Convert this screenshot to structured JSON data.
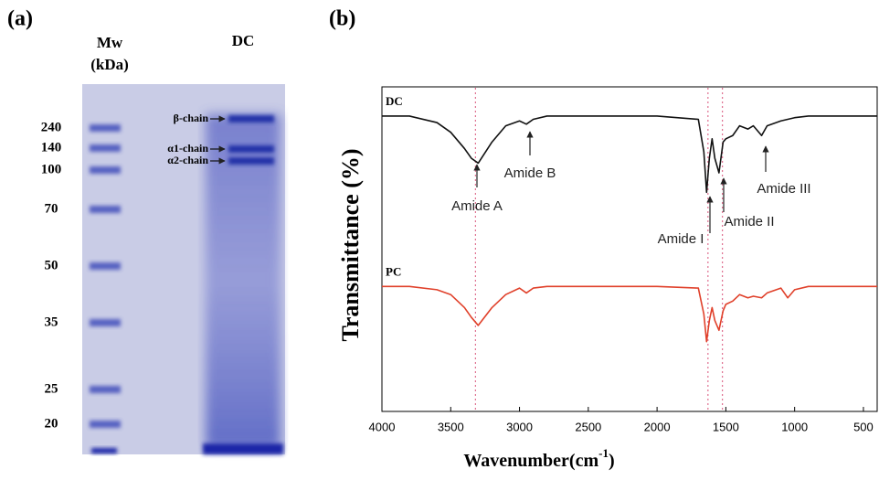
{
  "gel": {
    "panel_label": "(a)",
    "mw_label_line1": "Mw",
    "mw_label_line2": "(kDa)",
    "lane_label": "DC",
    "markers": [
      240,
      140,
      100,
      70,
      50,
      35,
      25,
      20
    ],
    "bands": [
      "β-chain",
      "α1-chain",
      "α2-chain"
    ]
  },
  "chart_data": {
    "type": "line",
    "panel_label": "(b)",
    "ylabel": "Transmittance (%)",
    "xlabel": "Wavenumber(cm",
    "xlabel_sup": "-1",
    "xlabel_end": ")",
    "xlim": [
      4000,
      400
    ],
    "xticks": [
      4000,
      3500,
      3000,
      2500,
      2000,
      1500,
      1000,
      500
    ],
    "ylim": [
      0,
      100
    ],
    "x": [
      4000,
      3800,
      3600,
      3500,
      3400,
      3350,
      3300,
      3200,
      3100,
      3000,
      2950,
      2900,
      2800,
      2000,
      1700,
      1660,
      1640,
      1620,
      1600,
      1580,
      1550,
      1520,
      1500,
      1450,
      1400,
      1340,
      1300,
      1240,
      1200,
      1100,
      1050,
      1000,
      900,
      400
    ],
    "series": [
      {
        "name": "DC",
        "color": "#111111",
        "values": [
          91,
          91,
          89,
          86,
          81,
          78,
          76.5,
          83,
          88,
          89.5,
          88.5,
          90,
          91,
          91,
          90,
          80,
          67.5,
          78,
          84,
          78,
          73.5,
          83,
          84,
          85,
          88,
          87,
          88,
          85,
          88,
          89.5,
          90,
          90.5,
          91,
          91
        ]
      },
      {
        "name": "PC",
        "color": "#e0402a",
        "values": [
          38.5,
          38.5,
          37.5,
          36,
          32,
          29,
          26.5,
          32,
          36,
          38,
          36.5,
          38,
          38.5,
          38.5,
          38,
          30,
          21.5,
          28,
          32,
          28,
          25,
          31,
          33,
          34,
          36,
          35,
          35.5,
          35,
          36.5,
          38,
          35,
          37.5,
          38.5,
          38.5
        ]
      }
    ],
    "reference_lines": [
      3320,
      1630,
      1525
    ],
    "reference_color": "#e07090",
    "annotations": [
      "Amide A",
      "Amide B",
      "Amide I",
      "Amide II",
      "Amide III"
    ]
  }
}
